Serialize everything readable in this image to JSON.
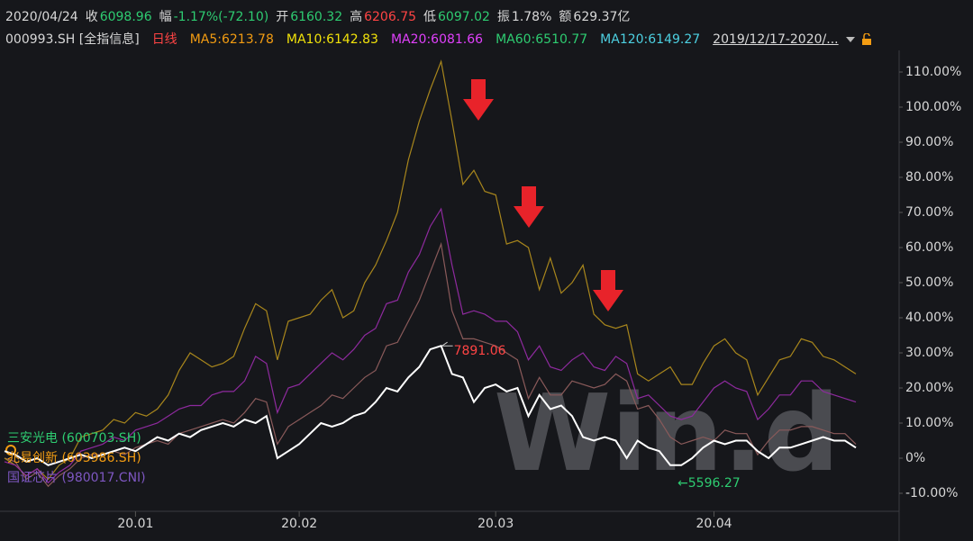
{
  "header": {
    "date": "2020/04/24",
    "items": [
      {
        "label": "收",
        "value": "6098.96",
        "color": "#2ecc71"
      },
      {
        "label": "幅",
        "value": "-1.17%(-72.10)",
        "color": "#2ecc71"
      },
      {
        "label": "开",
        "value": "6160.32",
        "color": "#2ecc71"
      },
      {
        "label": "高",
        "value": "6206.75",
        "color": "#ff4444"
      },
      {
        "label": "低",
        "value": "6097.02",
        "color": "#2ecc71"
      },
      {
        "label": "振",
        "value": "1.78%",
        "color": "#d8d8d8"
      },
      {
        "label": "额",
        "value": "629.37亿",
        "color": "#d8d8d8"
      }
    ],
    "indicators": [
      {
        "text": "000993.SH [全指信息]",
        "color": "#d8d8d8"
      },
      {
        "text": "日线",
        "color": "#ff4444"
      },
      {
        "text": "MA5:6213.78",
        "color": "#f39c12"
      },
      {
        "text": "MA10:6142.83",
        "color": "#f1e20a"
      },
      {
        "text": "MA20:6081.66",
        "color": "#e040fb"
      },
      {
        "text": "MA60:6510.77",
        "color": "#2ecc71"
      },
      {
        "text": "MA120:6149.27",
        "color": "#4dd0e1"
      },
      {
        "text": "2019/12/17-2020/...",
        "color": "#d8d8d8"
      }
    ]
  },
  "chart_data": {
    "type": "line",
    "watermark": "Win.d",
    "xlim": [
      0,
      78
    ],
    "xticks": [
      {
        "value": 12,
        "label": "20.01"
      },
      {
        "value": 27,
        "label": "20.02"
      },
      {
        "value": 45,
        "label": "20.03"
      },
      {
        "value": 65,
        "label": "20.04"
      }
    ],
    "ylim": [
      -15,
      115
    ],
    "yticks": [
      {
        "value": -10,
        "label": "-10.00%"
      },
      {
        "value": 0,
        "label": "0%"
      },
      {
        "value": 10,
        "label": "10.00%"
      },
      {
        "value": 20,
        "label": "20.00%"
      },
      {
        "value": 30,
        "label": "30.00%"
      },
      {
        "value": 40,
        "label": "40.00%"
      },
      {
        "value": 50,
        "label": "50.00%"
      },
      {
        "value": 60,
        "label": "60.00%"
      },
      {
        "value": 70,
        "label": "70.00%"
      },
      {
        "value": 80,
        "label": "80.00%"
      },
      {
        "value": 90,
        "label": "90.00%"
      },
      {
        "value": 100,
        "label": "100.00%"
      },
      {
        "value": 110,
        "label": "110.00%"
      }
    ],
    "series": [
      {
        "name": "三安光电 (600703.SH)",
        "color": "#8a5a5a",
        "legend_color": "#2ecc71",
        "values": [
          0,
          -1,
          -6,
          -4,
          -8,
          -5,
          -3,
          0,
          1,
          1,
          2,
          1,
          3,
          4,
          5,
          4,
          7,
          8,
          9,
          10,
          11,
          10,
          13,
          17,
          16,
          4,
          9,
          11,
          13,
          15,
          18,
          17,
          20,
          23,
          25,
          32,
          33,
          39,
          45,
          53,
          61,
          42,
          34,
          34,
          33,
          32,
          30,
          28,
          17,
          23,
          18,
          18,
          22,
          21,
          20,
          21,
          24,
          22,
          14,
          15,
          11,
          6,
          4,
          5,
          6,
          5,
          8,
          7,
          7,
          1,
          5,
          8,
          8,
          9,
          9,
          8,
          7,
          7,
          4
        ]
      },
      {
        "name": "兆易创新 (603986.SH)",
        "color": "#a8861c",
        "legend_color": "#f39c12",
        "values": [
          0,
          -2,
          -5,
          -3,
          -6,
          -2,
          0,
          6,
          7,
          8,
          11,
          10,
          13,
          12,
          14,
          18,
          25,
          30,
          28,
          26,
          27,
          29,
          37,
          44,
          42,
          28,
          39,
          40,
          41,
          45,
          48,
          40,
          42,
          50,
          55,
          62,
          70,
          85,
          96,
          105,
          113,
          96,
          78,
          82,
          76,
          75,
          61,
          62,
          60,
          48,
          57,
          47,
          50,
          55,
          41,
          38,
          37,
          38,
          24,
          22,
          24,
          26,
          21,
          21,
          27,
          32,
          34,
          30,
          28,
          18,
          23,
          28,
          29,
          34,
          33,
          29,
          28,
          26,
          24
        ]
      },
      {
        "name": "国证芯片 (980017.CNI)",
        "color": "#8e2a9e",
        "legend_color": "#7e57c2",
        "values": [
          -1,
          -2,
          -5,
          -3,
          -7,
          -4,
          -2,
          2,
          3,
          4,
          6,
          5,
          8,
          9,
          10,
          12,
          14,
          15,
          15,
          18,
          19,
          19,
          22,
          29,
          27,
          13,
          20,
          21,
          24,
          27,
          30,
          28,
          31,
          35,
          37,
          44,
          45,
          53,
          58,
          66,
          71,
          55,
          41,
          42,
          41,
          39,
          39,
          36,
          28,
          32,
          26,
          25,
          28,
          30,
          26,
          25,
          29,
          27,
          17,
          18,
          15,
          12,
          11,
          12,
          16,
          20,
          22,
          20,
          19,
          11,
          14,
          18,
          18,
          22,
          22,
          19,
          18,
          17,
          16
        ]
      },
      {
        "color": "#ffffff",
        "values": [
          2,
          1,
          -1,
          0,
          -2,
          -1,
          0,
          1,
          0,
          1,
          2,
          3,
          2,
          4,
          6,
          5,
          7,
          6,
          8,
          9,
          10,
          9,
          11,
          10,
          12,
          0,
          2,
          4,
          7,
          10,
          9,
          10,
          12,
          13,
          16,
          20,
          19,
          23,
          26,
          31,
          32,
          24,
          23,
          16,
          20,
          21,
          19,
          20,
          12,
          18,
          14,
          15,
          12,
          6,
          5,
          6,
          5,
          0,
          5,
          3,
          2,
          -2,
          -2,
          0,
          3,
          5,
          4,
          5,
          5,
          2,
          0,
          3,
          3,
          4,
          5,
          6,
          5,
          5,
          3
        ]
      }
    ],
    "annotations": [
      {
        "text": "7891.06",
        "color": "#ff4444"
      },
      {
        "text": "←5596.27",
        "color": "#2ecc71"
      }
    ]
  }
}
